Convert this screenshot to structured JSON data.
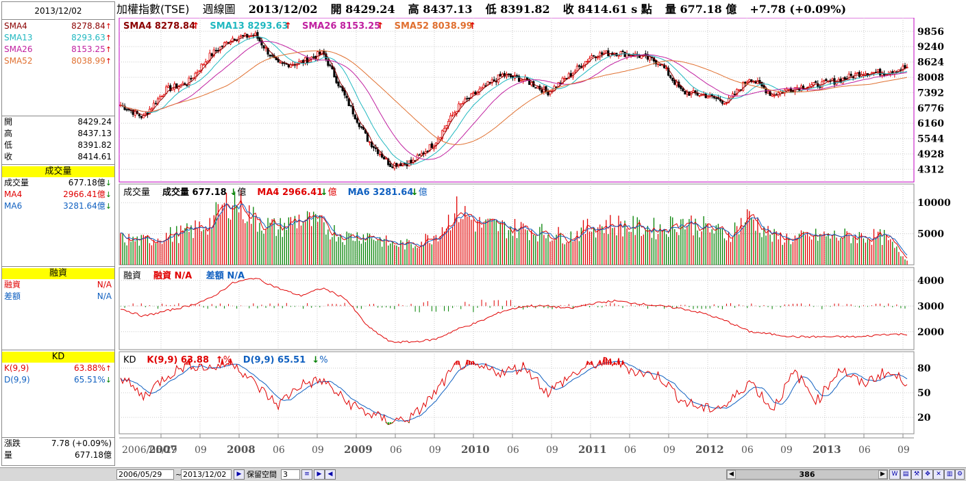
{
  "sidebar": {
    "date": "2013/12/02",
    "sma": [
      {
        "label": "SMA4",
        "value": "8278.84",
        "color": "#8b0000",
        "dir": "up"
      },
      {
        "label": "SMA13",
        "value": "8293.63",
        "color": "#20b8c0",
        "dir": "up"
      },
      {
        "label": "SMA26",
        "value": "8153.25",
        "color": "#c020a0",
        "dir": "up"
      },
      {
        "label": "SMA52",
        "value": "8038.99",
        "color": "#e07030",
        "dir": "up"
      }
    ],
    "ohlc": [
      {
        "label": "開",
        "value": "8429.24"
      },
      {
        "label": "高",
        "value": "8437.13"
      },
      {
        "label": "低",
        "value": "8391.82"
      },
      {
        "label": "收",
        "value": "8414.61"
      }
    ],
    "volume_header": "成交量",
    "volume": [
      {
        "label": "成交量",
        "value": "677.18億",
        "color": "#000000",
        "dir": "down"
      },
      {
        "label": "MA4",
        "value": "2966.41億",
        "color": "#e00000",
        "dir": "down"
      },
      {
        "label": "MA6",
        "value": "3281.64億",
        "color": "#1060c0",
        "dir": "down"
      }
    ],
    "margin_header": "融資",
    "margin": [
      {
        "label": "融資",
        "value": "N/A",
        "color": "#e00000"
      },
      {
        "label": "差額",
        "value": "N/A",
        "color": "#1060c0"
      }
    ],
    "kd_header": "KD",
    "kd": [
      {
        "label": "K(9,9)",
        "value": "63.88%",
        "color": "#e00000",
        "dir": "up"
      },
      {
        "label": "D(9,9)",
        "value": "65.51%",
        "color": "#1060c0",
        "dir": "down"
      }
    ],
    "change": [
      {
        "label": "漲跌",
        "value": "7.78 (+0.09%)"
      },
      {
        "label": "量",
        "value": "677.18億"
      }
    ]
  },
  "topbar": {
    "name": "加權指數(TSE)",
    "period": "週線圖",
    "date": "2013/12/02",
    "open": "開 8429.24",
    "high": "高 8437.13",
    "low": "低 8391.82",
    "close": "收 8414.61 s 點",
    "volume": "量 677.18 億",
    "change": "+7.78 (+0.09%)"
  },
  "panels": {
    "price_legend": [
      {
        "text": "SMA4 8278.84",
        "color": "#8b0000"
      },
      {
        "text": "SMA13 8293.63",
        "color": "#20b8c0"
      },
      {
        "text": "SMA26 8153.25",
        "color": "#c020a0"
      },
      {
        "text": "SMA52 8038.99",
        "color": "#e07030"
      }
    ],
    "volume_legend": [
      {
        "text": "成交量",
        "color": "#000000"
      },
      {
        "text": "成交量 677.18",
        "color": "#000000",
        "suffix": "億",
        "dir": "down"
      },
      {
        "text": "MA4 2966.41",
        "color": "#e00000",
        "suffix": "億",
        "dir": "down"
      },
      {
        "text": "MA6 3281.64",
        "color": "#1060c0",
        "suffix": "億",
        "dir": "down"
      }
    ],
    "margin_legend": [
      {
        "text": "融資",
        "color": "#000000"
      },
      {
        "text": "融資 N/A",
        "color": "#e00000"
      },
      {
        "text": "差額 N/A",
        "color": "#1060c0"
      }
    ],
    "kd_legend": [
      {
        "text": "KD",
        "color": "#000000"
      },
      {
        "text": "K(9,9) 63.88",
        "color": "#e00000",
        "suffix": "%",
        "dir": "up"
      },
      {
        "text": "D(9,9) 65.51",
        "color": "#1060c0",
        "suffix": "%",
        "dir": "down"
      }
    ]
  },
  "chart_data": [
    {
      "type": "candlestick",
      "x": [
        "2006/06",
        "2006/09",
        "2006/12",
        "2007/03",
        "2007/06",
        "2007/08",
        "2007/10",
        "2007/12",
        "2008/03",
        "2008/05",
        "2008/08",
        "2008/10",
        "2008/11",
        "2009/01",
        "2009/03",
        "2009/06",
        "2009/09",
        "2009/12",
        "2010/03",
        "2010/06",
        "2010/09",
        "2010/12",
        "2011/01",
        "2011/04",
        "2011/07",
        "2011/08",
        "2011/09",
        "2011/12",
        "2012/03",
        "2012/06",
        "2012/09",
        "2012/12",
        "2013/03",
        "2013/06",
        "2013/09",
        "2013/12"
      ],
      "close": [
        6900,
        6400,
        7500,
        7800,
        8900,
        9600,
        9700,
        8500,
        8600,
        9000,
        7200,
        5500,
        4500,
        4600,
        5400,
        6800,
        7500,
        8100,
        7900,
        7400,
        8100,
        8900,
        9000,
        8900,
        8600,
        7400,
        7300,
        7000,
        8000,
        7300,
        7600,
        7700,
        7900,
        8200,
        8200,
        8414.61
      ],
      "y_ticks": [
        9856,
        9240,
        8624,
        8008,
        7392,
        6776,
        6160,
        5544,
        4928,
        4312
      ],
      "ylim": [
        3800,
        10400
      ],
      "series": [
        {
          "name": "SMA4",
          "last": 8278.84
        },
        {
          "name": "SMA13",
          "last": 8293.63
        },
        {
          "name": "SMA26",
          "last": 8153.25
        },
        {
          "name": "SMA52",
          "last": 8038.99
        }
      ]
    },
    {
      "type": "bar",
      "x": [
        "2006/06",
        "2006/09",
        "2006/12",
        "2007/03",
        "2007/06",
        "2007/08",
        "2007/10",
        "2007/12",
        "2008/03",
        "2008/05",
        "2008/08",
        "2008/10",
        "2008/11",
        "2009/01",
        "2009/03",
        "2009/06",
        "2009/09",
        "2009/12",
        "2010/03",
        "2010/06",
        "2010/09",
        "2010/12",
        "2011/01",
        "2011/04",
        "2011/07",
        "2011/08",
        "2011/09",
        "2011/12",
        "2012/03",
        "2012/06",
        "2012/09",
        "2012/12",
        "2013/03",
        "2013/06",
        "2013/09",
        "2013/12"
      ],
      "values": [
        4200,
        3800,
        4700,
        5200,
        6800,
        10800,
        7200,
        5800,
        7500,
        6200,
        4500,
        4800,
        3400,
        3200,
        4800,
        8800,
        6400,
        6000,
        5800,
        5000,
        4600,
        6200,
        6500,
        6000,
        5800,
        7000,
        6000,
        4800,
        7800,
        4500,
        4200,
        4600,
        4600,
        4600,
        4400,
        677.18
      ],
      "y_ticks": [
        10000,
        5000
      ],
      "ylim": [
        0,
        13000
      ],
      "series": [
        {
          "name": "MA4",
          "last": 2966.41
        },
        {
          "name": "MA6",
          "last": 3281.64
        }
      ]
    },
    {
      "type": "line",
      "x": [
        "2006/06",
        "2006/09",
        "2006/12",
        "2007/03",
        "2007/06",
        "2007/08",
        "2007/10",
        "2007/12",
        "2008/03",
        "2008/05",
        "2008/08",
        "2008/10",
        "2008/11",
        "2009/01",
        "2009/03",
        "2009/06",
        "2009/09",
        "2009/12",
        "2010/03",
        "2010/06",
        "2010/09",
        "2010/12",
        "2011/01",
        "2011/04",
        "2011/07",
        "2011/08",
        "2011/09",
        "2011/12",
        "2012/03",
        "2012/06",
        "2012/09",
        "2012/12",
        "2013/03",
        "2013/06",
        "2013/09",
        "2013/12"
      ],
      "values": [
        2900,
        2600,
        2800,
        3000,
        3300,
        3900,
        4100,
        3700,
        3400,
        3700,
        3300,
        2200,
        1600,
        1600,
        1700,
        2100,
        2400,
        2800,
        3000,
        3000,
        2900,
        3100,
        3200,
        3100,
        3000,
        2900,
        2700,
        2400,
        2000,
        1900,
        1800,
        1800,
        1800,
        1800,
        1900,
        1900
      ],
      "y_ticks": [
        4000,
        3000,
        2000
      ],
      "ylim": [
        1300,
        4500
      ]
    },
    {
      "type": "line",
      "x": [
        "2006/06",
        "2006/09",
        "2006/12",
        "2007/03",
        "2007/06",
        "2007/08",
        "2007/10",
        "2007/12",
        "2008/03",
        "2008/05",
        "2008/08",
        "2008/10",
        "2008/11",
        "2009/01",
        "2009/03",
        "2009/06",
        "2009/09",
        "2009/12",
        "2010/03",
        "2010/06",
        "2010/09",
        "2010/12",
        "2011/01",
        "2011/04",
        "2011/07",
        "2011/08",
        "2011/09",
        "2011/12",
        "2012/03",
        "2012/06",
        "2012/09",
        "2012/12",
        "2013/03",
        "2013/06",
        "2013/09",
        "2013/12"
      ],
      "series": [
        {
          "name": "K(9,9)",
          "values": [
            70,
            45,
            70,
            85,
            80,
            88,
            60,
            35,
            60,
            65,
            40,
            25,
            15,
            20,
            50,
            85,
            80,
            75,
            82,
            50,
            70,
            85,
            88,
            75,
            70,
            40,
            30,
            35,
            65,
            30,
            75,
            40,
            80,
            60,
            75,
            63.88
          ]
        },
        {
          "name": "D(9,9)",
          "values": [
            65,
            50,
            60,
            78,
            82,
            80,
            70,
            50,
            55,
            62,
            50,
            35,
            20,
            18,
            40,
            75,
            80,
            78,
            78,
            62,
            65,
            78,
            85,
            80,
            72,
            55,
            40,
            35,
            55,
            45,
            60,
            50,
            68,
            65,
            70,
            65.51
          ]
        }
      ],
      "y_ticks": [
        80,
        50,
        20
      ],
      "ylim": [
        0,
        100
      ]
    }
  ],
  "x_axis_labels": [
    "2006/05/29",
    "2007",
    "09",
    "2008",
    "06",
    "09",
    "2009",
    "06",
    "09",
    "2010",
    "06",
    "09",
    "2011",
    "06",
    "09",
    "2012",
    "06",
    "09",
    "2013",
    "06",
    "09"
  ],
  "bottombar": {
    "start_date": "2006/05/29",
    "tilde": "~",
    "end_date": "2013/12/02",
    "reserve_label": "保留空間",
    "reserve_value": "3",
    "scroll_value": "386"
  }
}
